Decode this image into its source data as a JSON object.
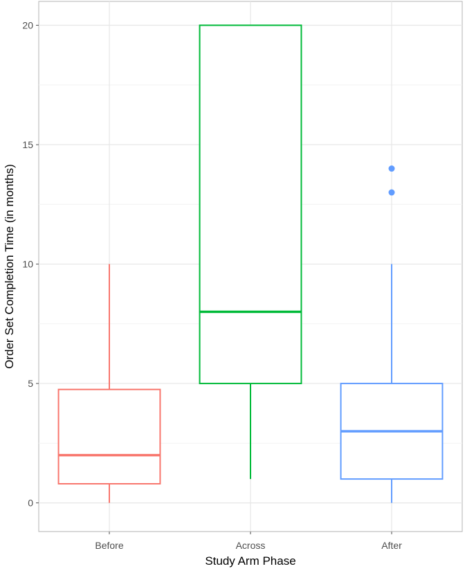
{
  "chart_data": {
    "type": "box",
    "title": "",
    "xlabel": "Study Arm Phase",
    "ylabel": "Order Set Completion Time (in months)",
    "ylim": [
      -1.2,
      21
    ],
    "yticks": [
      0,
      5,
      10,
      15,
      20
    ],
    "grid": true,
    "legend": "none",
    "categories": [
      "Before",
      "Across",
      "After"
    ],
    "series": [
      {
        "category": "Before",
        "color": "#f8766d",
        "whisker_low": 0,
        "q1": 0.8,
        "median": 2,
        "q3": 4.75,
        "whisker_high": 10,
        "outliers": []
      },
      {
        "category": "Across",
        "color": "#00ba38",
        "whisker_low": 1,
        "q1": 5,
        "median": 8,
        "q3": 20,
        "whisker_high": 20,
        "outliers": []
      },
      {
        "category": "After",
        "color": "#619cff",
        "whisker_low": 0,
        "q1": 1,
        "median": 3,
        "q3": 5,
        "whisker_high": 10,
        "outliers": [
          13,
          14
        ]
      }
    ]
  }
}
